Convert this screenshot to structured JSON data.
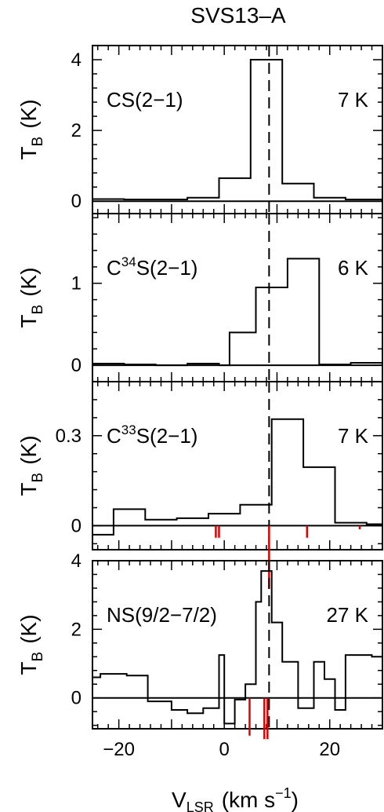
{
  "title": "SVS13–A",
  "xlabel_main": "V",
  "xlabel_sub": "LSR",
  "xlabel_units": "(km s",
  "xlabel_exp": "−1",
  "xlabel_close": ")",
  "ylabel_main": "T",
  "ylabel_sub": "B",
  "ylabel_units": "(K)",
  "colors": {
    "line": "#000000",
    "marker": "#dd0000"
  },
  "chart_data": [
    {
      "type": "line",
      "step": true,
      "title": "SVS13–A",
      "xlabel": "V_LSR (km s^-1)",
      "ylabel": "T_B (K)",
      "xlim": [
        -25,
        30
      ],
      "ylim": [
        -0.35,
        4.4
      ],
      "yticks": [
        0,
        2,
        4
      ],
      "ytick_labels": [
        "0",
        "2",
        "4"
      ],
      "xticks": [
        -20,
        0,
        20
      ],
      "xtick_labels": [
        "−20",
        "0",
        "20"
      ],
      "vline": 8.5,
      "annotation_left": {
        "pre": "CS(2−1)"
      },
      "annotation_right": "7 K",
      "series": [
        {
          "x": [
            -25,
            -19,
            -13,
            -7,
            -1,
            5,
            11,
            17,
            23,
            30
          ],
          "y": [
            0.06,
            0.05,
            0.05,
            0.1,
            0.65,
            4.0,
            0.5,
            0.1,
            0.05,
            0.05
          ]
        }
      ],
      "markers": []
    },
    {
      "type": "line",
      "step": true,
      "xlim": [
        -25,
        30
      ],
      "ylim": [
        -0.2,
        1.85
      ],
      "yticks": [
        0,
        1
      ],
      "ytick_labels": [
        "0",
        "1"
      ],
      "xticks": [
        -20,
        0,
        20
      ],
      "xtick_labels": [
        "−20",
        "0",
        "20"
      ],
      "vline": 8.5,
      "annotation_left": {
        "pre": "C",
        "sup": "34",
        "post": "S(2−1)"
      },
      "annotation_right": "6 K",
      "series": [
        {
          "x": [
            -25,
            -19,
            -13,
            -7,
            -1,
            1,
            6,
            12,
            18,
            24,
            30
          ],
          "y": [
            0.02,
            0.01,
            0.0,
            0.02,
            0.0,
            0.4,
            0.95,
            1.3,
            0.01,
            0.03,
            0.05
          ]
        }
      ],
      "markers": []
    },
    {
      "type": "line",
      "step": true,
      "xlim": [
        -25,
        30
      ],
      "ylim": [
        -0.08,
        0.48
      ],
      "yticks": [
        0,
        0.3
      ],
      "ytick_labels": [
        "0",
        "0.3"
      ],
      "xticks": [
        -20,
        0,
        20
      ],
      "xtick_labels": [
        "−20",
        "0",
        "20"
      ],
      "vline": 8.5,
      "annotation_left": {
        "pre": "C",
        "sup": "33",
        "post": "S(2−1)"
      },
      "annotation_right": "7 K",
      "series": [
        {
          "x": [
            -25,
            -21,
            -15,
            -9,
            -3,
            3,
            9,
            15,
            21,
            27,
            30
          ],
          "y": [
            -0.03,
            0.055,
            0.02,
            0.025,
            0.04,
            0.07,
            0.355,
            0.195,
            0.01,
            0.005,
            0.015
          ]
        }
      ],
      "markers": [
        {
          "x": -1.6,
          "height": 0.04
        },
        {
          "x": -1.0,
          "height": 0.04
        },
        {
          "x": 8.5,
          "height": 0.21
        },
        {
          "x": 15.7,
          "height": 0.04
        },
        {
          "x": 25.7,
          "height": 0.012
        }
      ]
    },
    {
      "type": "line",
      "step": true,
      "xlim": [
        -25,
        30
      ],
      "ylim": [
        -0.9,
        4.0
      ],
      "yticks": [
        0,
        2,
        4
      ],
      "ytick_labels": [
        "0",
        "2",
        "4"
      ],
      "xticks": [
        -20,
        0,
        20
      ],
      "xtick_labels": [
        "−20",
        "0",
        "20"
      ],
      "vline": 8.5,
      "annotation_left": {
        "pre": "NS(9/2−7/2)"
      },
      "annotation_right": "27 K",
      "series": [
        {
          "x": [
            -25,
            -23.5,
            -18.5,
            -14.5,
            -10,
            -7,
            -4,
            -1,
            0,
            2,
            4,
            6,
            7,
            9,
            11,
            14,
            17,
            19,
            21,
            23,
            28,
            30
          ],
          "y": [
            0.6,
            0.7,
            0.65,
            -0.1,
            -0.35,
            -0.45,
            -0.3,
            1.25,
            -0.75,
            -0.05,
            0.4,
            2.8,
            3.7,
            2.2,
            1.05,
            -0.3,
            1.05,
            0.55,
            -0.35,
            1.25,
            1.2,
            1.6
          ]
        }
      ],
      "markers": [
        {
          "x": 4.8,
          "height": 1.1
        },
        {
          "x": 7.6,
          "height": 1.2
        },
        {
          "x": 8.2,
          "height": 1.2
        }
      ]
    }
  ]
}
